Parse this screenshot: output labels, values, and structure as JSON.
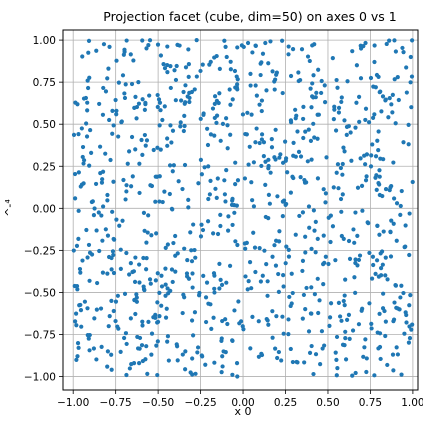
{
  "chart_data": {
    "type": "scatter",
    "title": "Projection facet (cube, dim=50) on axes 0 vs 1",
    "xlabel": "x 0",
    "ylabel": "^-⁴",
    "xlim": [
      -1.06,
      1.03
    ],
    "ylim": [
      -1.08,
      1.06
    ],
    "x_ticks": [
      -1.0,
      -0.75,
      -0.5,
      -0.25,
      0.0,
      0.25,
      0.5,
      0.75,
      1.0
    ],
    "x_tick_labels": [
      "−1.00",
      "−0.75",
      "−0.50",
      "−0.25",
      "0.00",
      "0.25",
      "0.50",
      "0.75",
      "1.00"
    ],
    "y_ticks": [
      1.0,
      0.75,
      0.5,
      0.25,
      0.0,
      -0.25,
      -0.5,
      -0.75,
      -1.0
    ],
    "y_tick_labels": [
      "1.00",
      "0.75",
      "0.50",
      "0.25",
      "0.00",
      "−0.25",
      "−0.50",
      "−0.75",
      "−1.00"
    ],
    "grid": true,
    "legend": "none",
    "marker_color": "#1f77b4",
    "point_count": 1000,
    "distribution": "uniform",
    "seed": 50
  }
}
